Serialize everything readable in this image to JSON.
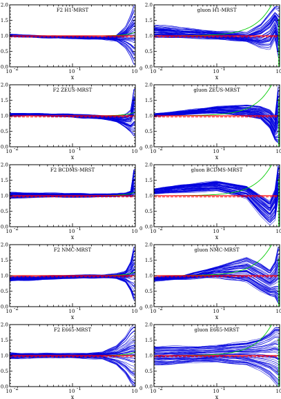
{
  "figure": {
    "xlabel": "x",
    "ytick_labels": [
      "0.0",
      "0.5",
      "1.0",
      "1.5",
      "2.0"
    ],
    "xtick_labels": [
      "10",
      "10",
      "10"
    ],
    "xtick_exponents": [
      "-2",
      "-1",
      "0"
    ],
    "colors": {
      "band": "#0000dd",
      "central": "#ff0000",
      "alt": "#00cc00",
      "frame": "#000000"
    }
  },
  "chart_data": [
    {
      "type": "line",
      "row": 0,
      "col": 0,
      "title": "F2 H1-MRST",
      "xlabel": "x",
      "xscale": "log",
      "xlim": [
        0.01,
        1
      ],
      "ylim": [
        0,
        2
      ],
      "series": [
        {
          "x": [
            0.01,
            0.03,
            0.1,
            0.3,
            0.5,
            0.7,
            0.85,
            0.95
          ],
          "values": [
            1.03,
            1.0,
            0.96,
            0.96,
            1.02,
            1.3,
            1.7,
            2.0
          ]
        },
        {
          "x": [
            0.01,
            0.03,
            0.1,
            0.3,
            0.5,
            0.7,
            0.85,
            0.95
          ],
          "values": [
            0.99,
            0.96,
            0.92,
            0.9,
            0.84,
            0.6,
            0.3,
            0.05
          ]
        }
      ]
    },
    {
      "type": "line",
      "row": 0,
      "col": 1,
      "title": "gluon H1-MRST",
      "xlabel": "x",
      "xscale": "log",
      "xlim": [
        0.01,
        1
      ],
      "ylim": [
        0,
        2
      ],
      "series": [
        {
          "x": [
            0.01,
            0.03,
            0.1,
            0.3,
            0.5,
            0.7,
            0.85,
            0.95
          ],
          "values": [
            1.35,
            1.25,
            1.15,
            1.1,
            1.4,
            1.8,
            2.0,
            2.0
          ]
        },
        {
          "x": [
            0.01,
            0.03,
            0.1,
            0.3,
            0.5,
            0.7,
            0.85,
            0.95
          ],
          "values": [
            0.95,
            0.92,
            0.9,
            0.8,
            0.6,
            0.55,
            0.9,
            0.3
          ]
        }
      ]
    },
    {
      "type": "line",
      "row": 1,
      "col": 0,
      "title": "F2 ZEUS-MRST",
      "xlabel": "x",
      "xscale": "log",
      "xlim": [
        0.01,
        1
      ],
      "ylim": [
        0,
        2
      ],
      "series": [
        {
          "x": [
            0.01,
            0.03,
            0.1,
            0.3,
            0.5,
            0.7,
            0.85,
            0.95
          ],
          "values": [
            1.06,
            1.06,
            1.04,
            1.0,
            1.0,
            1.05,
            1.2,
            1.9
          ]
        },
        {
          "x": [
            0.01,
            0.03,
            0.1,
            0.3,
            0.5,
            0.7,
            0.85,
            0.95
          ],
          "values": [
            1.02,
            1.01,
            0.98,
            0.9,
            0.8,
            0.6,
            0.45,
            0.3
          ]
        }
      ]
    },
    {
      "type": "line",
      "row": 1,
      "col": 1,
      "title": "gluon ZEUS-MRST",
      "xlabel": "x",
      "xscale": "log",
      "xlim": [
        0.01,
        1
      ],
      "ylim": [
        0,
        2
      ],
      "series": [
        {
          "x": [
            0.01,
            0.03,
            0.1,
            0.3,
            0.5,
            0.7,
            0.85,
            0.95
          ],
          "values": [
            1.05,
            1.15,
            1.3,
            1.35,
            1.3,
            1.2,
            1.0,
            2.0
          ]
        },
        {
          "x": [
            0.01,
            0.03,
            0.1,
            0.3,
            0.5,
            0.7,
            0.85,
            0.95
          ],
          "values": [
            1.0,
            1.05,
            1.1,
            1.0,
            0.9,
            0.6,
            0.2,
            0.1
          ]
        }
      ]
    },
    {
      "type": "line",
      "row": 2,
      "col": 0,
      "title": "F2 BCDMS-MRST",
      "xlabel": "x",
      "xscale": "log",
      "xlim": [
        0.01,
        1
      ],
      "ylim": [
        0,
        2
      ],
      "series": [
        {
          "x": [
            0.01,
            0.03,
            0.1,
            0.3,
            0.5,
            0.7,
            0.85,
            0.95
          ],
          "values": [
            1.1,
            1.08,
            1.06,
            1.05,
            1.05,
            1.07,
            1.15,
            1.9
          ]
        },
        {
          "x": [
            0.01,
            0.03,
            0.1,
            0.3,
            0.5,
            0.7,
            0.85,
            0.95
          ],
          "values": [
            0.93,
            0.95,
            0.96,
            0.98,
            0.98,
            0.99,
            0.98,
            0.95
          ]
        }
      ]
    },
    {
      "type": "line",
      "row": 2,
      "col": 1,
      "title": "gluon BCDMS-MRST",
      "xlabel": "x",
      "xscale": "log",
      "xlim": [
        0.01,
        1
      ],
      "ylim": [
        0,
        2
      ],
      "series": [
        {
          "x": [
            0.01,
            0.03,
            0.1,
            0.3,
            0.5,
            0.7,
            0.85,
            0.95
          ],
          "values": [
            1.2,
            1.35,
            1.45,
            1.3,
            1.0,
            0.8,
            1.2,
            2.0
          ]
        },
        {
          "x": [
            0.01,
            0.03,
            0.1,
            0.3,
            0.5,
            0.7,
            0.85,
            0.95
          ],
          "values": [
            1.05,
            1.1,
            1.15,
            0.9,
            0.35,
            0.05,
            0.2,
            0.9
          ]
        }
      ]
    },
    {
      "type": "line",
      "row": 3,
      "col": 0,
      "title": "F2 NMC-MRST",
      "xlabel": "x",
      "xscale": "log",
      "xlim": [
        0.01,
        1
      ],
      "ylim": [
        0,
        2
      ],
      "series": [
        {
          "x": [
            0.01,
            0.03,
            0.1,
            0.3,
            0.5,
            0.7,
            0.85,
            0.95
          ],
          "values": [
            0.95,
            0.97,
            1.0,
            1.02,
            1.05,
            1.15,
            1.5,
            2.0
          ]
        },
        {
          "x": [
            0.01,
            0.03,
            0.1,
            0.3,
            0.5,
            0.7,
            0.85,
            0.95
          ],
          "values": [
            0.85,
            0.88,
            0.93,
            0.95,
            0.92,
            0.8,
            0.5,
            0.2
          ]
        }
      ]
    },
    {
      "type": "line",
      "row": 3,
      "col": 1,
      "title": "gluon NMC-MRST",
      "xlabel": "x",
      "xscale": "log",
      "xlim": [
        0.01,
        1
      ],
      "ylim": [
        0,
        2
      ],
      "series": [
        {
          "x": [
            0.01,
            0.03,
            0.1,
            0.3,
            0.5,
            0.7,
            0.85,
            0.95
          ],
          "values": [
            0.95,
            1.0,
            1.3,
            1.6,
            1.4,
            1.2,
            1.5,
            2.0
          ]
        },
        {
          "x": [
            0.01,
            0.03,
            0.1,
            0.3,
            0.5,
            0.7,
            0.85,
            0.95
          ],
          "values": [
            0.85,
            0.9,
            0.95,
            0.8,
            0.5,
            0.35,
            0.3,
            0.1
          ]
        }
      ]
    },
    {
      "type": "line",
      "row": 4,
      "col": 0,
      "title": "F2 E665-MRST",
      "xlabel": "x",
      "xscale": "log",
      "xlim": [
        0.01,
        1
      ],
      "ylim": [
        0,
        2
      ],
      "series": [
        {
          "x": [
            0.01,
            0.03,
            0.1,
            0.3,
            0.5,
            0.7,
            0.85,
            0.95
          ],
          "values": [
            1.08,
            1.05,
            1.05,
            1.1,
            1.3,
            1.6,
            1.9,
            2.0
          ]
        },
        {
          "x": [
            0.01,
            0.03,
            0.1,
            0.3,
            0.5,
            0.7,
            0.85,
            0.95
          ],
          "values": [
            0.92,
            0.94,
            0.95,
            0.9,
            0.7,
            0.4,
            0.1,
            0.0
          ]
        }
      ]
    },
    {
      "type": "line",
      "row": 4,
      "col": 1,
      "title": "gluon E665-MRST",
      "xlabel": "x",
      "xscale": "log",
      "xlim": [
        0.01,
        1
      ],
      "ylim": [
        0,
        2
      ],
      "series": [
        {
          "x": [
            0.01,
            0.03,
            0.1,
            0.3,
            0.5,
            0.7,
            0.85,
            0.95
          ],
          "values": [
            1.3,
            1.3,
            1.35,
            1.45,
            1.6,
            1.8,
            2.0,
            2.0
          ]
        },
        {
          "x": [
            0.01,
            0.03,
            0.1,
            0.3,
            0.5,
            0.7,
            0.85,
            0.95
          ],
          "values": [
            0.7,
            0.75,
            0.8,
            0.7,
            0.5,
            0.3,
            0.1,
            0.0
          ]
        }
      ]
    }
  ]
}
